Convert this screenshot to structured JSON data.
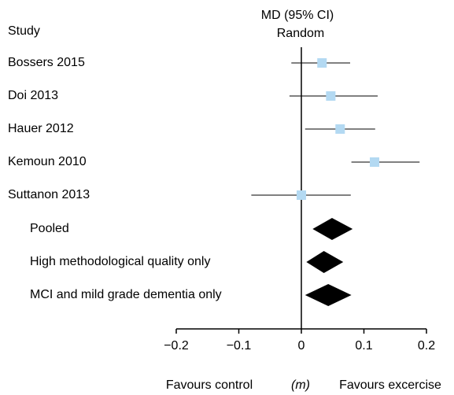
{
  "chart_data": {
    "type": "forest",
    "header": [
      "MD (95% CI)",
      "Random"
    ],
    "study_label": "Study",
    "studies": {
      "names": [
        "Bossers 2015",
        "Doi 2013",
        "Hauer 2012",
        "Kemoun 2010",
        "Suttanon 2013"
      ],
      "estimate": [
        0.033,
        0.047,
        0.062,
        0.117,
        0.0
      ],
      "lower": [
        -0.016,
        -0.019,
        0.006,
        0.08,
        -0.08
      ],
      "upper": [
        0.078,
        0.122,
        0.118,
        0.189,
        0.079
      ],
      "color": "#b3d9f2"
    },
    "summaries": {
      "names": [
        "Pooled",
        "High methodological quality only",
        "MCI and mild grade dementia only"
      ],
      "estimate": [
        0.049,
        0.036,
        0.043
      ],
      "lower": [
        0.018,
        0.008,
        0.006
      ],
      "upper": [
        0.082,
        0.067,
        0.08
      ],
      "color": "#000000"
    },
    "xlim": [
      -0.2,
      0.2
    ],
    "xticks": [
      {
        "value": -0.2,
        "label": "−0.2"
      },
      {
        "value": -0.1,
        "label": "−0.1"
      },
      0,
      0.1,
      0.2
    ],
    "footer": [
      "Favours control",
      "(m)",
      "Favours excercise"
    ]
  }
}
